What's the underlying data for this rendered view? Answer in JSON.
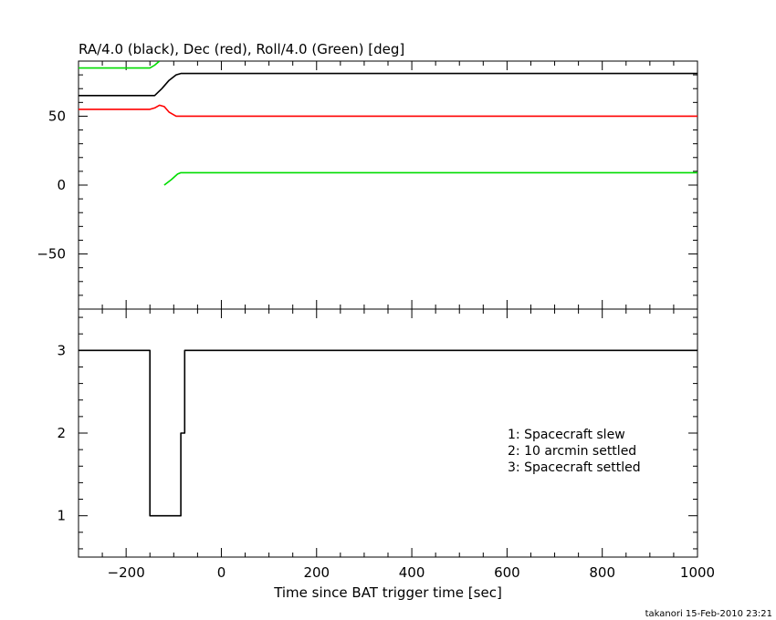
{
  "chart_data": [
    {
      "type": "line",
      "title": "RA/4.0 (black), Dec (red), Roll/4.0 (Green) [deg]",
      "xlim": [
        -300,
        1000
      ],
      "ylim": [
        -90,
        90
      ],
      "yticks": [
        -50,
        0,
        50
      ],
      "yticklabels": [
        "−50",
        "0",
        "50"
      ],
      "series": [
        {
          "color": "#000000",
          "points": [
            [
              -300,
              65
            ],
            [
              -140,
              65
            ],
            [
              -125,
              70
            ],
            [
              -110,
              76
            ],
            [
              -95,
              80
            ],
            [
              -85,
              81
            ],
            [
              1000,
              81
            ]
          ]
        },
        {
          "color": "#ff0000",
          "points": [
            [
              -300,
              55
            ],
            [
              -150,
              55
            ],
            [
              -140,
              56
            ],
            [
              -130,
              58
            ],
            [
              -120,
              57
            ],
            [
              -110,
              53
            ],
            [
              -95,
              50
            ],
            [
              -85,
              50
            ],
            [
              1000,
              50
            ]
          ]
        },
        {
          "color": "#00dd00",
          "points": [
            [
              -300,
              85
            ],
            [
              -150,
              85
            ],
            [
              -140,
              87
            ],
            [
              -130,
              90
            ]
          ]
        },
        {
          "color": "#00dd00",
          "points": [
            [
              -120,
              0
            ],
            [
              -105,
              4
            ],
            [
              -92,
              8
            ],
            [
              -85,
              9
            ],
            [
              1000,
              9
            ]
          ]
        }
      ]
    },
    {
      "type": "line",
      "xlim": [
        -300,
        1000
      ],
      "ylim": [
        0.5,
        3.5
      ],
      "yticks": [
        1,
        2,
        3
      ],
      "yticklabels": [
        "1",
        "2",
        "3"
      ],
      "xticks": [
        -200,
        0,
        200,
        400,
        600,
        800,
        1000
      ],
      "xticklabels": [
        "−200",
        "0",
        "200",
        "400",
        "600",
        "800",
        "1000"
      ],
      "xlabel": "Time since BAT trigger time [sec]",
      "legend": [
        "1: Spacecraft slew",
        "2: 10 arcmin settled",
        "3: Spacecraft settled"
      ],
      "series": [
        {
          "color": "#000000",
          "points": [
            [
              -300,
              3
            ],
            [
              -150,
              3
            ],
            [
              -150,
              1
            ],
            [
              -85,
              1
            ],
            [
              -85,
              2
            ],
            [
              -77,
              2
            ],
            [
              -77,
              3
            ],
            [
              1000,
              3
            ]
          ]
        }
      ]
    }
  ],
  "footer": "takanori 15-Feb-2010 23:21"
}
